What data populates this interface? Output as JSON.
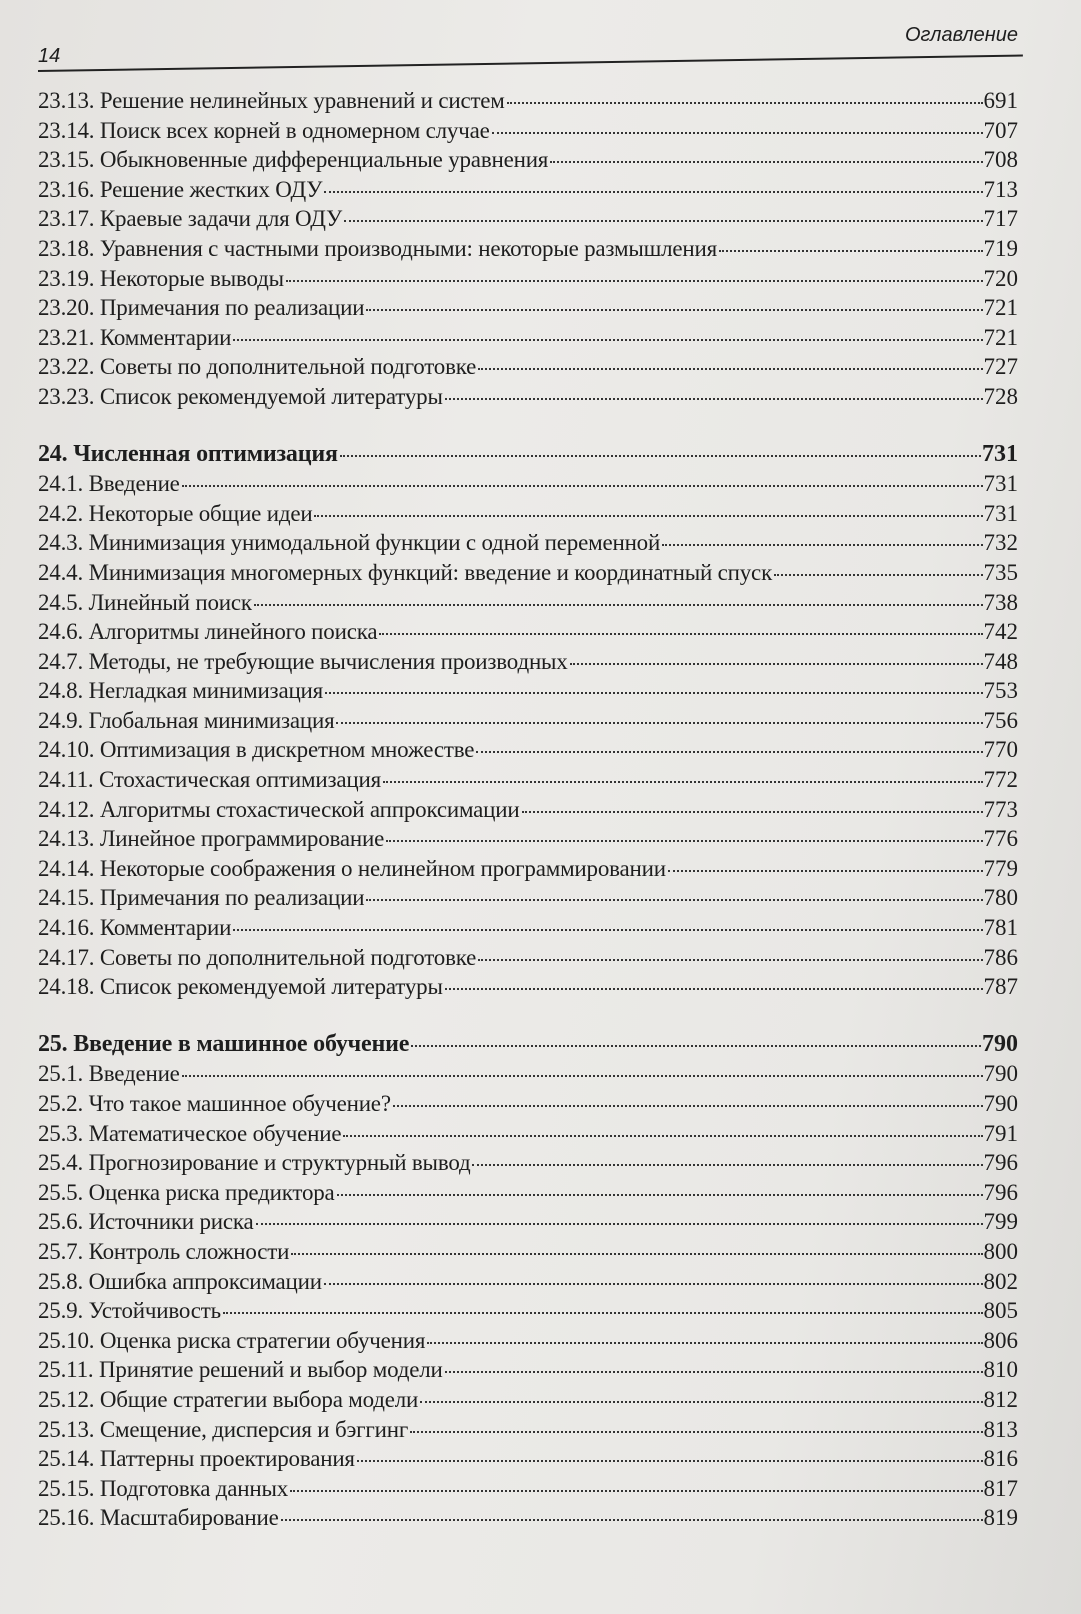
{
  "header": {
    "page_number": "14",
    "section": "Оглавление"
  },
  "toc": [
    {
      "num": "23.13.",
      "title": "Решение нелинейных уравнений и систем",
      "page": "691"
    },
    {
      "num": "23.14.",
      "title": "Поиск всех корней в одномерном случае",
      "page": "707"
    },
    {
      "num": "23.15.",
      "title": "Обыкновенные дифференциальные уравнения",
      "page": "708"
    },
    {
      "num": "23.16.",
      "title": "Решение жестких ОДУ",
      "page": "713"
    },
    {
      "num": "23.17.",
      "title": "Краевые задачи для ОДУ",
      "page": "717"
    },
    {
      "num": "23.18.",
      "title": "Уравнения с частными производными: некоторые размышления",
      "page": "719"
    },
    {
      "num": "23.19.",
      "title": "Некоторые выводы",
      "page": "720"
    },
    {
      "num": "23.20.",
      "title": "Примечания по реализации",
      "page": "721"
    },
    {
      "num": "23.21.",
      "title": "Комментарии",
      "page": "721"
    },
    {
      "num": "23.22.",
      "title": "Советы по дополнительной подготовке",
      "page": "727"
    },
    {
      "num": "23.23.",
      "title": "Список рекомендуемой литературы",
      "page": "728"
    },
    {
      "chapter": true,
      "num": "24.",
      "title": "Численная оптимизация",
      "page": "731"
    },
    {
      "num": "24.1.",
      "title": "Введение",
      "page": "731"
    },
    {
      "num": "24.2.",
      "title": "Некоторые общие идеи",
      "page": "731"
    },
    {
      "num": "24.3.",
      "title": "Минимизация унимодальной функции с одной переменной",
      "page": "732"
    },
    {
      "num": "24.4.",
      "title": "Минимизация многомерных функций: введение и координатный спуск",
      "page": "735"
    },
    {
      "num": "24.5.",
      "title": "Линейный поиск",
      "page": "738"
    },
    {
      "num": "24.6.",
      "title": "Алгоритмы линейного поиска",
      "page": "742"
    },
    {
      "num": "24.7.",
      "title": "Методы, не требующие вычисления производных",
      "page": "748"
    },
    {
      "num": "24.8.",
      "title": "Негладкая минимизация",
      "page": "753"
    },
    {
      "num": "24.9.",
      "title": "Глобальная минимизация",
      "page": "756"
    },
    {
      "num": "24.10.",
      "title": "Оптимизация в дискретном множестве",
      "page": "770"
    },
    {
      "num": "24.11.",
      "title": "Стохастическая оптимизация",
      "page": "772"
    },
    {
      "num": "24.12.",
      "title": "Алгоритмы стохастической аппроксимации",
      "page": "773"
    },
    {
      "num": "24.13.",
      "title": "Линейное программирование",
      "page": "776"
    },
    {
      "num": "24.14.",
      "title": "Некоторые соображения о нелинейном программировании",
      "page": "779"
    },
    {
      "num": "24.15.",
      "title": "Примечания по реализации",
      "page": "780"
    },
    {
      "num": "24.16.",
      "title": "Комментарии",
      "page": "781"
    },
    {
      "num": "24.17.",
      "title": "Советы по дополнительной подготовке",
      "page": "786"
    },
    {
      "num": "24.18.",
      "title": "Список рекомендуемой литературы",
      "page": "787"
    },
    {
      "chapter": true,
      "num": "25.",
      "title": "Введение в машинное обучение",
      "page": "790"
    },
    {
      "num": "25.1.",
      "title": "Введение",
      "page": "790"
    },
    {
      "num": "25.2.",
      "title": "Что такое машинное обучение?",
      "page": "790"
    },
    {
      "num": "25.3.",
      "title": "Математическое обучение",
      "page": "791"
    },
    {
      "num": "25.4.",
      "title": "Прогнозирование и структурный вывод",
      "page": "796"
    },
    {
      "num": "25.5.",
      "title": "Оценка риска предиктора",
      "page": "796"
    },
    {
      "num": "25.6.",
      "title": "Источники риска",
      "page": "799"
    },
    {
      "num": "25.7.",
      "title": "Контроль сложности",
      "page": "800"
    },
    {
      "num": "25.8.",
      "title": "Ошибка аппроксимации",
      "page": "802"
    },
    {
      "num": "25.9.",
      "title": "Устойчивость",
      "page": "805"
    },
    {
      "num": "25.10.",
      "title": "Оценка риска стратегии обучения",
      "page": "806"
    },
    {
      "num": "25.11.",
      "title": "Принятие решений и выбор модели",
      "page": "810"
    },
    {
      "num": "25.12.",
      "title": "Общие стратегии выбора модели",
      "page": "812"
    },
    {
      "num": "25.13.",
      "title": "Смещение, дисперсия и бэггинг",
      "page": "813"
    },
    {
      "num": "25.14.",
      "title": "Паттерны проектирования",
      "page": "816"
    },
    {
      "num": "25.15.",
      "title": "Подготовка данных",
      "page": "817"
    },
    {
      "num": "25.16.",
      "title": "Масштабирование",
      "page": "819"
    }
  ]
}
